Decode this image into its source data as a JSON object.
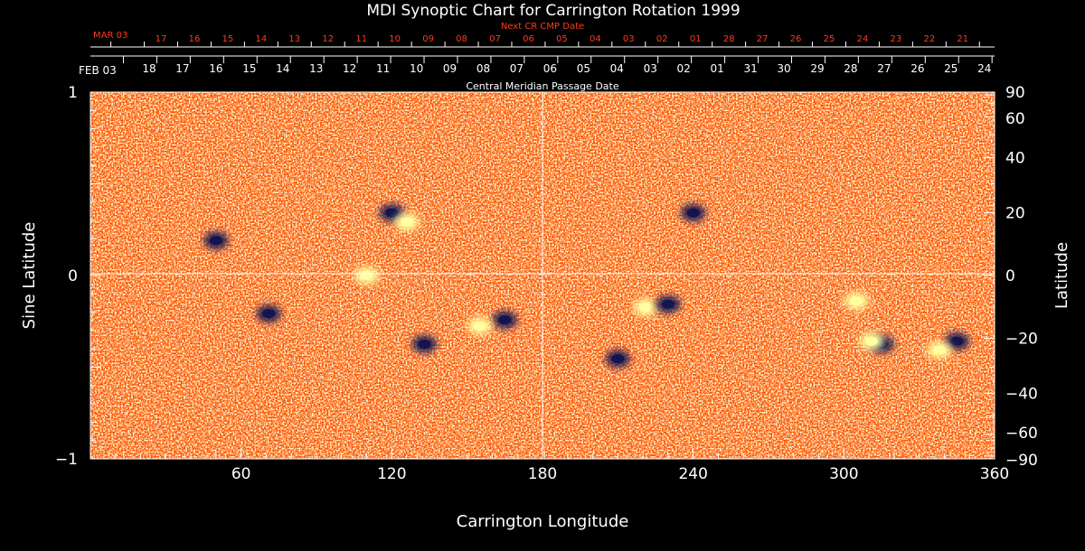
{
  "chart_data": {
    "type": "heatmap",
    "title": "MDI Synoptic Chart for Carrington Rotation 1999",
    "xlabel": "Carrington Longitude",
    "ylabel_left": "Sine Latitude",
    "ylabel_right": "Latitude",
    "top_axis_label": "Central Meridian Passage Date",
    "next_axis_label": "Next CR CMP Date",
    "xlim": [
      0,
      360
    ],
    "ylim": [
      -1,
      1
    ],
    "grid": "center lines at longitude 180 and sine latitude 0",
    "x_ticks": [
      {
        "value": 60,
        "label": "60"
      },
      {
        "value": 120,
        "label": "120"
      },
      {
        "value": 180,
        "label": "180"
      },
      {
        "value": 240,
        "label": "240"
      },
      {
        "value": 300,
        "label": "300"
      },
      {
        "value": 360,
        "label": "360"
      }
    ],
    "y_ticks_left": [
      {
        "value": 1,
        "label": "1"
      },
      {
        "value": 0,
        "label": "0"
      },
      {
        "value": -1,
        "label": "−1"
      }
    ],
    "y_ticks_right": [
      {
        "value": 90,
        "label": "90"
      },
      {
        "value": 60,
        "label": "60"
      },
      {
        "value": 40,
        "label": "40"
      },
      {
        "value": 20,
        "label": "20"
      },
      {
        "value": 0,
        "label": "0"
      },
      {
        "value": -20,
        "label": "−20"
      },
      {
        "value": -40,
        "label": "−40"
      },
      {
        "value": -60,
        "label": "−60"
      },
      {
        "value": -90,
        "label": "−90"
      }
    ],
    "cmp_date_first": "FEB 03",
    "cmp_dates": [
      "18",
      "17",
      "16",
      "15",
      "14",
      "13",
      "12",
      "11",
      "10",
      "09",
      "08",
      "07",
      "06",
      "05",
      "04",
      "03",
      "02",
      "01",
      "31",
      "30",
      "29",
      "28",
      "27",
      "26",
      "25",
      "24"
    ],
    "next_cmp_date_first": "MAR 03",
    "next_cmp_dates": [
      "17",
      "16",
      "15",
      "14",
      "13",
      "12",
      "11",
      "10",
      "09",
      "08",
      "07",
      "06",
      "05",
      "04",
      "03",
      "02",
      "01",
      "28",
      "27",
      "26",
      "25",
      "24",
      "23",
      "22",
      "21"
    ],
    "colorscale": {
      "background": "#ff4d00",
      "positive": "#ffffa0",
      "negative": "#141450"
    },
    "magnetic_regions": [
      {
        "lon": 120,
        "lat": 20,
        "polarity": "negative"
      },
      {
        "lon": 126,
        "lat": 17,
        "polarity": "positive"
      },
      {
        "lon": 50,
        "lat": 11,
        "polarity": "negative"
      },
      {
        "lon": 110,
        "lat": 0,
        "polarity": "positive"
      },
      {
        "lon": 165,
        "lat": -14,
        "polarity": "negative"
      },
      {
        "lon": 155,
        "lat": -16,
        "polarity": "positive"
      },
      {
        "lon": 133,
        "lat": -22,
        "polarity": "negative"
      },
      {
        "lon": 71,
        "lat": -12,
        "polarity": "negative"
      },
      {
        "lon": 221,
        "lat": -10,
        "polarity": "positive"
      },
      {
        "lon": 230,
        "lat": -9,
        "polarity": "negative"
      },
      {
        "lon": 210,
        "lat": -27,
        "polarity": "negative"
      },
      {
        "lon": 315,
        "lat": -22,
        "polarity": "negative"
      },
      {
        "lon": 311,
        "lat": -21,
        "polarity": "positive"
      },
      {
        "lon": 345,
        "lat": -21,
        "polarity": "negative"
      },
      {
        "lon": 338,
        "lat": -24,
        "polarity": "positive"
      },
      {
        "lon": 305,
        "lat": -8,
        "polarity": "positive"
      },
      {
        "lon": 240,
        "lat": 20,
        "polarity": "negative"
      }
    ]
  }
}
